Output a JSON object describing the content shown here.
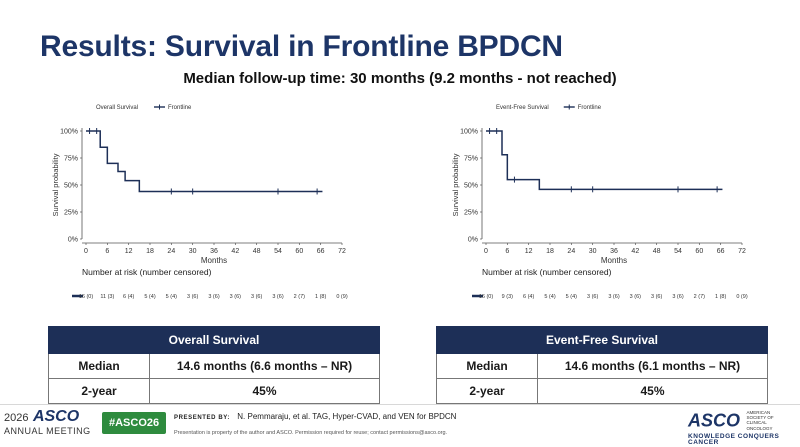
{
  "slide": {
    "title": "Results: Survival in Frontline BPDCN",
    "subtitle": "Median follow-up time: 30 months (9.2 months - not reached)"
  },
  "chart_data": [
    {
      "type": "line",
      "legend_title": "Overall Survival",
      "legend_series": "Frontline",
      "ylabel": "Survival probability",
      "xlabel": "Months",
      "x_ticks": [
        0,
        6,
        12,
        18,
        24,
        30,
        36,
        42,
        48,
        54,
        60,
        66,
        72
      ],
      "y_ticks": [
        "0%",
        "25%",
        "50%",
        "75%",
        "100%"
      ],
      "xlim": [
        0,
        72
      ],
      "ylim": [
        0,
        1
      ],
      "series": [
        {
          "name": "Frontline",
          "color": "#1d2f57",
          "steps": [
            [
              0,
              1.0
            ],
            [
              4,
              0.85
            ],
            [
              6,
              0.7
            ],
            [
              9,
              0.625
            ],
            [
              11,
              0.54
            ],
            [
              15,
              0.44
            ],
            [
              66.5,
              0.44
            ]
          ],
          "censor_x": [
            1,
            3,
            24,
            30,
            54,
            65
          ]
        }
      ],
      "risk_table": {
        "title": "Number at risk (number censored)",
        "values": [
          "16 (0)",
          "11 (3)",
          "6 (4)",
          "5 (4)",
          "5 (4)",
          "3 (6)",
          "3 (6)",
          "3 (6)",
          "3 (6)",
          "3 (6)",
          "2 (7)",
          "1 (8)",
          "0 (9)"
        ]
      }
    },
    {
      "type": "line",
      "legend_title": "Event-Free Survival",
      "legend_series": "Frontline",
      "ylabel": "Survival probability",
      "xlabel": "Months",
      "x_ticks": [
        0,
        6,
        12,
        18,
        24,
        30,
        36,
        42,
        48,
        54,
        60,
        66,
        72
      ],
      "y_ticks": [
        "0%",
        "25%",
        "50%",
        "75%",
        "100%"
      ],
      "xlim": [
        0,
        72
      ],
      "ylim": [
        0,
        1
      ],
      "series": [
        {
          "name": "Frontline",
          "color": "#1d2f57",
          "steps": [
            [
              0,
              1.0
            ],
            [
              4.5,
              0.78
            ],
            [
              6,
              0.55
            ],
            [
              15,
              0.46
            ],
            [
              66.5,
              0.46
            ]
          ],
          "censor_x": [
            1,
            3,
            8,
            24,
            30,
            54,
            65
          ]
        }
      ],
      "risk_table": {
        "title": "Number at risk (number censored)",
        "values": [
          "16 (0)",
          "9 (3)",
          "6 (4)",
          "5 (4)",
          "5 (4)",
          "3 (6)",
          "3 (6)",
          "3 (6)",
          "3 (6)",
          "3 (6)",
          "2 (7)",
          "1 (8)",
          "0 (9)"
        ]
      }
    }
  ],
  "tables": {
    "os": {
      "header": "Overall Survival",
      "rows": [
        {
          "label": "Median",
          "value": "14.6 months (6.6 months – NR)"
        },
        {
          "label": "2-year",
          "value": "45%"
        }
      ]
    },
    "efs": {
      "header": "Event-Free Survival",
      "rows": [
        {
          "label": "Median",
          "value": "14.6 months (6.1 months – NR)"
        },
        {
          "label": "2-year",
          "value": "45%"
        }
      ]
    }
  },
  "footer": {
    "year": "2026",
    "asco": "ASCO",
    "annual_meeting": "ANNUAL MEETING",
    "hashtag": "#ASCO26",
    "presented_by": "PRESENTED BY:",
    "presenter": "N. Pemmaraju, et al. TAG, Hyper-CVAD, and VEN for BPDCN",
    "notice": "Presentation is property of the author and ASCO. Permission required for reuse; contact permissions@asco.org.",
    "logo_right": "ASCO",
    "society": "AMERICAN SOCIETY OF CLINICAL ONCOLOGY",
    "tagline": "KNOWLEDGE CONQUERS CANCER"
  },
  "colors": {
    "title": "#1d3567",
    "line": "#1d2f57",
    "table_header": "#1d2f57",
    "hashtag": "#2e8b3e"
  }
}
